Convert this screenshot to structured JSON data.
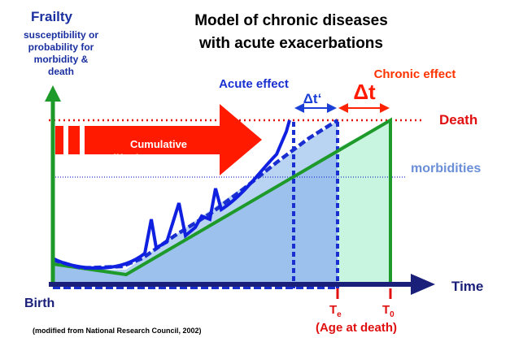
{
  "title": [
    "Model of chronic diseases",
    "with acute exacerbations"
  ],
  "y_axis": {
    "label": "Frailty",
    "description": [
      "susceptibility or",
      "probability for",
      "morbidity &",
      "death"
    ]
  },
  "x_axis": {
    "label": "Time",
    "origin": "Birth"
  },
  "levels": {
    "death": "Death",
    "morbidities": "morbidities"
  },
  "exposure": [
    "Cumulative",
    "life-time exposure"
  ],
  "effects": {
    "acute": "Acute effect",
    "acute_shift": "Δt‘",
    "chronic": "Chronic effect",
    "chronic_shift": "Δt"
  },
  "times": [
    {
      "letter": "T",
      "sub": "e"
    },
    {
      "letter": "T",
      "sub": "0"
    }
  ],
  "age_at_death": "(Age at death)",
  "source": "(modified from National Research Council, 2002)"
}
